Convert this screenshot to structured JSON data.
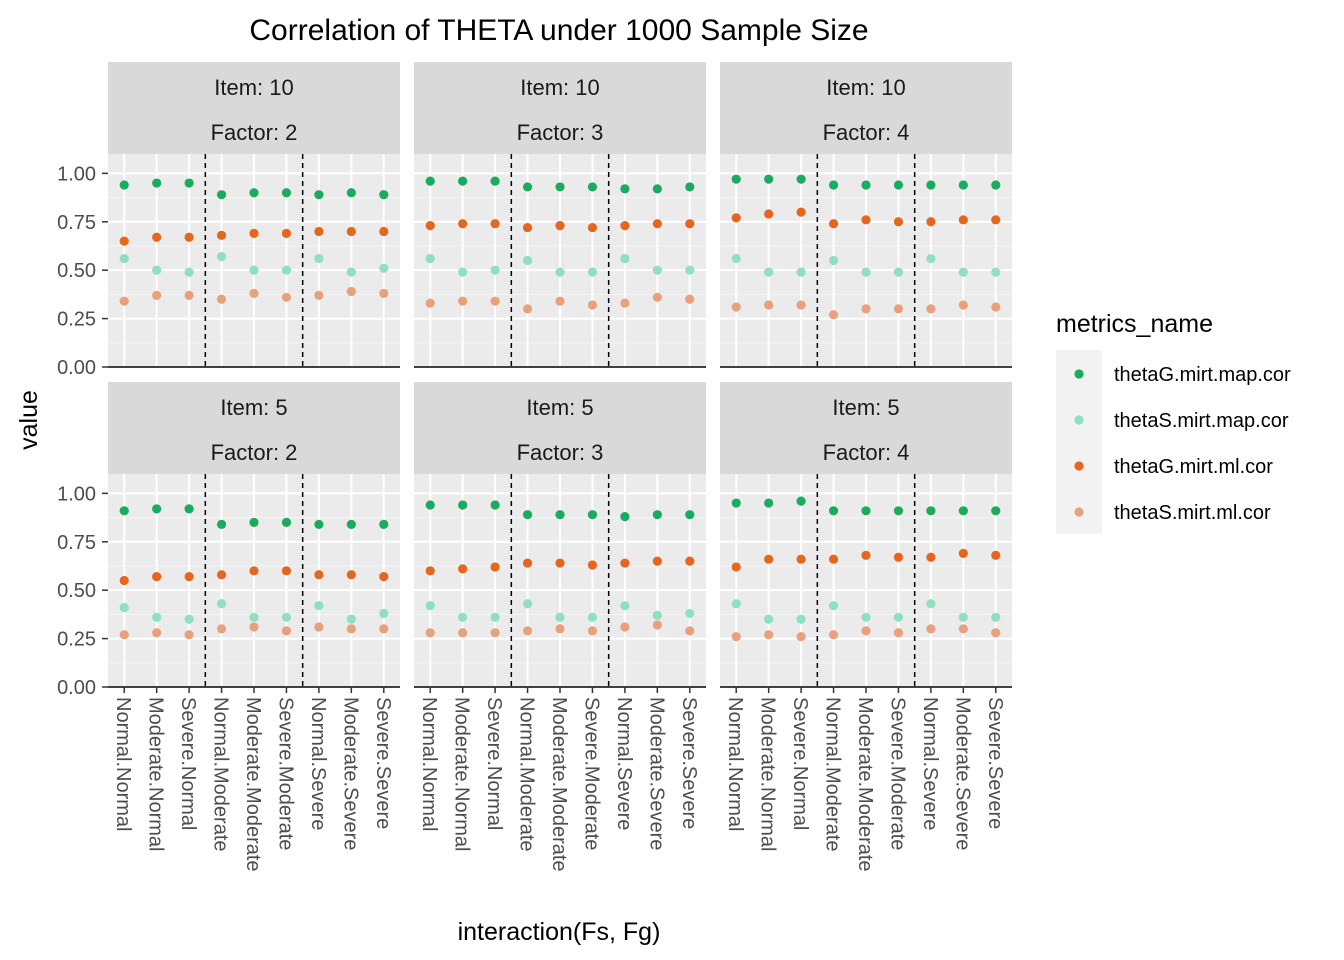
{
  "chart_data": {
    "type": "scatter",
    "title": "Correlation of THETA under 1000 Sample Size",
    "xlabel": "interaction(Fs, Fg)",
    "ylabel": "value",
    "ylim": [
      0,
      1.1
    ],
    "yticks": [
      "0.00",
      "0.25",
      "0.50",
      "0.75",
      "1.00"
    ],
    "categories": [
      "Normal.Normal",
      "Moderate.Normal",
      "Severe.Normal",
      "Normal.Moderate",
      "Moderate.Moderate",
      "Severe.Moderate",
      "Normal.Severe",
      "Moderate.Severe",
      "Severe.Severe"
    ],
    "grid": true,
    "hline": 0,
    "vlines_between": [
      3.5,
      6.5
    ],
    "legend": {
      "title": "metrics_name",
      "position": "right",
      "entries": [
        {
          "name": "thetaG.mirt.map.cor",
          "color": "#1aab5e"
        },
        {
          "name": "thetaS.mirt.map.cor",
          "color": "#8fe0bc"
        },
        {
          "name": "thetaG.mirt.ml.cor",
          "color": "#e5661e"
        },
        {
          "name": "thetaS.mirt.ml.cor",
          "color": "#e9a07d"
        }
      ]
    },
    "panels": [
      {
        "strip1": "Item: 10",
        "strip2": "Factor: 2",
        "row": 0,
        "col": 0,
        "series": [
          {
            "name": "thetaG.mirt.map.cor",
            "values": [
              0.94,
              0.95,
              0.95,
              0.89,
              0.9,
              0.9,
              0.89,
              0.9,
              0.89
            ]
          },
          {
            "name": "thetaS.mirt.map.cor",
            "values": [
              0.56,
              0.5,
              0.49,
              0.57,
              0.5,
              0.5,
              0.56,
              0.49,
              0.51
            ]
          },
          {
            "name": "thetaG.mirt.ml.cor",
            "values": [
              0.65,
              0.67,
              0.67,
              0.68,
              0.69,
              0.69,
              0.7,
              0.7,
              0.7
            ]
          },
          {
            "name": "thetaS.mirt.ml.cor",
            "values": [
              0.34,
              0.37,
              0.37,
              0.35,
              0.38,
              0.36,
              0.37,
              0.39,
              0.38
            ]
          }
        ]
      },
      {
        "strip1": "Item: 10",
        "strip2": "Factor: 3",
        "row": 0,
        "col": 1,
        "series": [
          {
            "name": "thetaG.mirt.map.cor",
            "values": [
              0.96,
              0.96,
              0.96,
              0.93,
              0.93,
              0.93,
              0.92,
              0.92,
              0.93
            ]
          },
          {
            "name": "thetaS.mirt.map.cor",
            "values": [
              0.56,
              0.49,
              0.5,
              0.55,
              0.49,
              0.49,
              0.56,
              0.5,
              0.5
            ]
          },
          {
            "name": "thetaG.mirt.ml.cor",
            "values": [
              0.73,
              0.74,
              0.74,
              0.72,
              0.73,
              0.72,
              0.73,
              0.74,
              0.74
            ]
          },
          {
            "name": "thetaS.mirt.ml.cor",
            "values": [
              0.33,
              0.34,
              0.34,
              0.3,
              0.34,
              0.32,
              0.33,
              0.36,
              0.35
            ]
          }
        ]
      },
      {
        "strip1": "Item: 10",
        "strip2": "Factor: 4",
        "row": 0,
        "col": 2,
        "series": [
          {
            "name": "thetaG.mirt.map.cor",
            "values": [
              0.97,
              0.97,
              0.97,
              0.94,
              0.94,
              0.94,
              0.94,
              0.94,
              0.94
            ]
          },
          {
            "name": "thetaS.mirt.map.cor",
            "values": [
              0.56,
              0.49,
              0.49,
              0.55,
              0.49,
              0.49,
              0.56,
              0.49,
              0.49
            ]
          },
          {
            "name": "thetaG.mirt.ml.cor",
            "values": [
              0.77,
              0.79,
              0.8,
              0.74,
              0.76,
              0.75,
              0.75,
              0.76,
              0.76
            ]
          },
          {
            "name": "thetaS.mirt.ml.cor",
            "values": [
              0.31,
              0.32,
              0.32,
              0.27,
              0.3,
              0.3,
              0.3,
              0.32,
              0.31
            ]
          }
        ]
      },
      {
        "strip1": "Item: 5",
        "strip2": "Factor: 2",
        "row": 1,
        "col": 0,
        "series": [
          {
            "name": "thetaG.mirt.map.cor",
            "values": [
              0.91,
              0.92,
              0.92,
              0.84,
              0.85,
              0.85,
              0.84,
              0.84,
              0.84
            ]
          },
          {
            "name": "thetaS.mirt.map.cor",
            "values": [
              0.41,
              0.36,
              0.35,
              0.43,
              0.36,
              0.36,
              0.42,
              0.35,
              0.38
            ]
          },
          {
            "name": "thetaG.mirt.ml.cor",
            "values": [
              0.55,
              0.57,
              0.57,
              0.58,
              0.6,
              0.6,
              0.58,
              0.58,
              0.57
            ]
          },
          {
            "name": "thetaS.mirt.ml.cor",
            "values": [
              0.27,
              0.28,
              0.27,
              0.3,
              0.31,
              0.29,
              0.31,
              0.3,
              0.3
            ]
          }
        ]
      },
      {
        "strip1": "Item: 5",
        "strip2": "Factor: 3",
        "row": 1,
        "col": 1,
        "series": [
          {
            "name": "thetaG.mirt.map.cor",
            "values": [
              0.94,
              0.94,
              0.94,
              0.89,
              0.89,
              0.89,
              0.88,
              0.89,
              0.89
            ]
          },
          {
            "name": "thetaS.mirt.map.cor",
            "values": [
              0.42,
              0.36,
              0.36,
              0.43,
              0.36,
              0.36,
              0.42,
              0.37,
              0.38
            ]
          },
          {
            "name": "thetaG.mirt.ml.cor",
            "values": [
              0.6,
              0.61,
              0.62,
              0.64,
              0.64,
              0.63,
              0.64,
              0.65,
              0.65
            ]
          },
          {
            "name": "thetaS.mirt.ml.cor",
            "values": [
              0.28,
              0.28,
              0.28,
              0.29,
              0.3,
              0.29,
              0.31,
              0.32,
              0.29
            ]
          }
        ]
      },
      {
        "strip1": "Item: 5",
        "strip2": "Factor: 4",
        "row": 1,
        "col": 2,
        "series": [
          {
            "name": "thetaG.mirt.map.cor",
            "values": [
              0.95,
              0.95,
              0.96,
              0.91,
              0.91,
              0.91,
              0.91,
              0.91,
              0.91
            ]
          },
          {
            "name": "thetaS.mirt.map.cor",
            "values": [
              0.43,
              0.35,
              0.35,
              0.42,
              0.36,
              0.36,
              0.43,
              0.36,
              0.36
            ]
          },
          {
            "name": "thetaG.mirt.ml.cor",
            "values": [
              0.62,
              0.66,
              0.66,
              0.66,
              0.68,
              0.67,
              0.67,
              0.69,
              0.68
            ]
          },
          {
            "name": "thetaS.mirt.ml.cor",
            "values": [
              0.26,
              0.27,
              0.26,
              0.27,
              0.29,
              0.28,
              0.3,
              0.3,
              0.28
            ]
          }
        ]
      }
    ]
  }
}
